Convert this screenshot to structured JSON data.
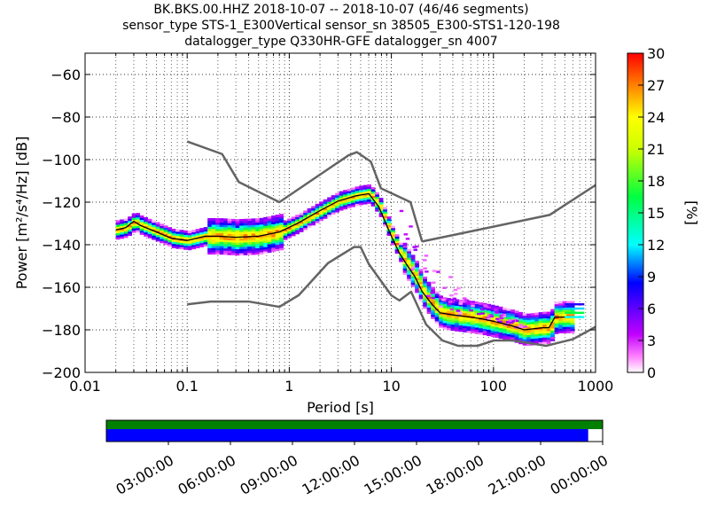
{
  "title": {
    "line1": "BK.BKS.00.HHZ   2018-10-07 -- 2018-10-07  (46/46 segments)",
    "line2": "sensor_type STS-1_E300Vertical sensor_sn 38505_E300-STS1-120-198",
    "line3": "datalogger_type Q330HR-GFE datalogger_sn 4007"
  },
  "colors": {
    "noise_model": "#646464",
    "mode_line": "#000000",
    "grid": "#000000",
    "coverage_green": "#008000",
    "coverage_blue": "#0000ff"
  },
  "chart_data": [
    {
      "type": "heatmap",
      "subtype": "ppsd",
      "xlabel": "Period [s]",
      "ylabel": "Power [m²/s⁴/Hz] [dB]",
      "xscale": "log",
      "xlim": [
        0.01,
        1000
      ],
      "ylim": [
        -200,
        -50
      ],
      "xticks": [
        0.01,
        0.1,
        1,
        10,
        100,
        1000
      ],
      "xtick_labels": [
        "0.01",
        "0.1",
        "1",
        "10",
        "100",
        "1000"
      ],
      "yticks": [
        -200,
        -180,
        -160,
        -140,
        -120,
        -100,
        -80,
        -60
      ],
      "ytick_labels": [
        "−200",
        "−180",
        "−160",
        "−140",
        "−120",
        "−100",
        "−80",
        "−60"
      ],
      "grid": true,
      "colorbar": {
        "label": "[%]",
        "min": 0,
        "max": 30,
        "ticks": [
          0,
          3,
          6,
          9,
          12,
          15,
          18,
          21,
          24,
          27,
          30
        ],
        "tick_labels": [
          "0",
          "3",
          "6",
          "9",
          "12",
          "15",
          "18",
          "21",
          "24",
          "27",
          "30"
        ]
      },
      "noise_models": [
        {
          "name": "NHNM",
          "x": [
            0.1,
            0.22,
            0.32,
            0.8,
            3.8,
            4.6,
            6.3,
            7.9,
            15.4,
            20
          ],
          "y": [
            -91.5,
            -97.4,
            -110.5,
            -120,
            -98,
            -96.5,
            -101,
            -113.5,
            -120,
            -138.5
          ]
        },
        {
          "name": "NHNM_long",
          "x": [
            20,
            354.8,
            1000
          ],
          "y": [
            -138.5,
            -126,
            -112
          ]
        },
        {
          "name": "NLNM",
          "x": [
            0.1,
            0.17,
            0.4,
            0.8,
            1.24,
            2.4,
            4.3,
            5,
            6,
            10,
            12,
            15.6,
            21.9,
            31.6,
            45,
            70,
            101,
            154,
            328,
            600,
            1000
          ],
          "y": [
            -168,
            -166.7,
            -166.7,
            -169.2,
            -163.7,
            -148.6,
            -141.1,
            -141.1,
            -149,
            -163.8,
            -166.2,
            -162.1,
            -177.5,
            -185,
            -187.5,
            -187.5,
            -185,
            -185,
            -187.5,
            -184.4,
            -178.6
          ]
        }
      ],
      "mode": {
        "x": [
          0.02,
          0.025,
          0.03,
          0.035,
          0.05,
          0.07,
          0.1,
          0.15,
          0.2,
          0.3,
          0.5,
          0.8,
          1.2,
          2,
          3,
          4.5,
          6,
          7.5,
          10,
          12,
          14,
          17,
          20,
          25,
          30,
          40,
          60,
          80,
          100,
          150,
          200,
          300,
          350,
          400,
          500
        ],
        "y": [
          -133,
          -132,
          -129,
          -131,
          -134,
          -137,
          -138,
          -136,
          -136,
          -136.5,
          -136,
          -134,
          -130,
          -124,
          -119.5,
          -117,
          -116,
          -122,
          -136,
          -144,
          -149,
          -155,
          -162,
          -168,
          -172,
          -173,
          -174,
          -175,
          -176,
          -178,
          -180,
          -179,
          -179,
          -174,
          -174
        ]
      },
      "density": {
        "main_band_width_db": 4,
        "broad_band_microseism_width_db": 8,
        "scatter_branch": {
          "x": [
            12,
            14,
            17,
            20,
            25,
            30,
            40,
            50,
            60,
            80,
            100,
            150,
            200
          ],
          "y": [
            -122,
            -125,
            -131,
            -138,
            -145,
            -150,
            -157,
            -162,
            -164,
            -168,
            -170,
            -174,
            -178
          ]
        }
      }
    },
    {
      "type": "coverage",
      "xlim": [
        "00:00:00",
        "24:00:00"
      ],
      "tick_labels": [
        "03:00:00",
        "06:00:00",
        "09:00:00",
        "12:00:00",
        "15:00:00",
        "18:00:00",
        "21:00:00",
        "00:00:00"
      ],
      "tick_hours": [
        3,
        6,
        9,
        12,
        15,
        18,
        21,
        24
      ],
      "data_coverage_end_hour": 24,
      "processed_coverage_end_hour": 23.3
    }
  ]
}
